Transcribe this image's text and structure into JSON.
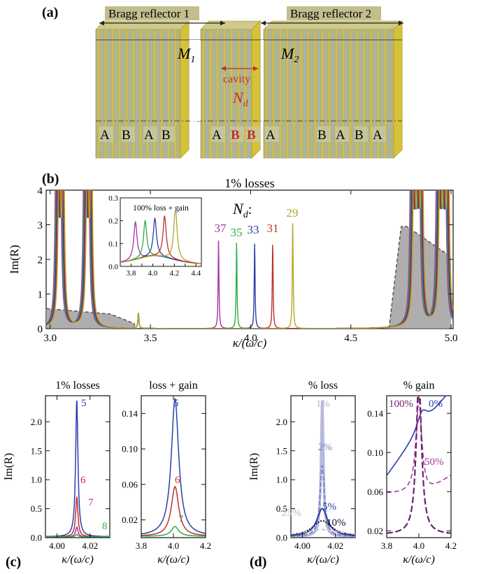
{
  "panel_labels": {
    "a": "(a)",
    "b": "(b)",
    "c": "(c)",
    "d": "(d)"
  },
  "schematic": {
    "bragg1": "Bragg reflector 1",
    "bragg2": "Bragg reflector 2",
    "m1": "M",
    "m1_sub": "1",
    "m2": "M",
    "m2_sub": "2",
    "cavity": "cavity",
    "nd": "N",
    "nd_sub": "d",
    "layer_a": "A",
    "layer_b": "B",
    "colors": {
      "gold": "#d6c23a",
      "stripe": "#9fb3c8",
      "cavity": "#c0302a"
    }
  },
  "chart_data": [
    {
      "id": "b",
      "type": "line",
      "title": "1% losses",
      "xlabel": "κ/(ω/c)",
      "ylabel": "Im(R)",
      "xlim": [
        2.98,
        5.01
      ],
      "ylim": [
        0,
        4
      ],
      "xticks": [
        "3.0",
        "3.5",
        "4.0",
        "4.5",
        "5.0"
      ],
      "yticks": [
        "0",
        "1",
        "2",
        "3",
        "4"
      ],
      "nd_label": "N",
      "nd_sub": "d",
      "nd_colon": ":",
      "series": [
        {
          "name": "37",
          "color": "#a634a6",
          "peak_x": 3.84,
          "peak_y": 2.55
        },
        {
          "name": "35",
          "color": "#2eab48",
          "peak_x": 3.93,
          "peak_y": 2.5
        },
        {
          "name": "33",
          "color": "#2c3ea8",
          "peak_x": 4.02,
          "peak_y": 2.5
        },
        {
          "name": "31",
          "color": "#c0302a",
          "peak_x": 4.11,
          "peak_y": 2.5
        },
        {
          "name": "29",
          "color": "#b3a72c",
          "peak_x": 4.21,
          "peak_y": 3.12
        }
      ],
      "band_shade": {
        "color": "#a0a0a0"
      },
      "inset": {
        "title": "100% loss + gain",
        "xlim": [
          3.7,
          4.45
        ],
        "ylim": [
          0,
          0.3
        ],
        "xticks": [
          "3.8",
          "3.9",
          "4.0",
          "4.1",
          "4.2",
          "4.3",
          "4.4"
        ],
        "yticks": [
          "0.0",
          "0.1",
          "0.2",
          "0.3"
        ],
        "peaks": [
          {
            "x": 3.84,
            "y": 0.165
          },
          {
            "x": 3.93,
            "y": 0.16
          },
          {
            "x": 4.02,
            "y": 0.165
          },
          {
            "x": 4.11,
            "y": 0.18
          },
          {
            "x": 4.21,
            "y": 0.23
          }
        ]
      }
    },
    {
      "id": "c1",
      "type": "line",
      "title": "1% losses",
      "xlabel": "κ/(ω/c)",
      "ylabel": "Im(R)",
      "xlim": [
        3.993,
        4.032
      ],
      "ylim": [
        0,
        2.45
      ],
      "xticks": [
        "4.00",
        "4.02"
      ],
      "yticks": [
        "0.0",
        "0.5",
        "1.0",
        "1.5",
        "2.0"
      ],
      "series": [
        {
          "name": "5",
          "color": "#2c3ea8",
          "peak": 2.35
        },
        {
          "name": "6",
          "color": "#c0302a",
          "peak": 0.68
        },
        {
          "name": "7",
          "color": "#a634a6",
          "peak": 0.17
        },
        {
          "name": "8",
          "color": "#2eab48",
          "peak": 0.04
        }
      ]
    },
    {
      "id": "c2",
      "type": "line",
      "title": "loss + gain",
      "xlabel": "κ/(ω/c)",
      "xlim": [
        3.8,
        4.2
      ],
      "ylim": [
        0,
        0.16
      ],
      "xticks": [
        "3.8",
        "4.0",
        "4.2"
      ],
      "yticks": [
        "0.02",
        "0.06",
        "0.10",
        "0.14"
      ],
      "series": [
        {
          "name": "5",
          "color": "#2c3ea8",
          "peak": 0.155
        },
        {
          "name": "6",
          "color": "#c0302a",
          "peak": 0.056
        },
        {
          "name": "7",
          "color": "#2eab48",
          "peak": 0.011
        }
      ]
    },
    {
      "id": "d1",
      "type": "line",
      "title": "% loss",
      "xlabel": "κ/(ω/c)",
      "ylabel": "Im(R)",
      "xlim": [
        3.993,
        4.032
      ],
      "ylim": [
        0,
        2.45
      ],
      "xticks": [
        "4.00",
        "4.02"
      ],
      "yticks": [
        "0.0",
        "0.5",
        "1.0",
        "1.5",
        "2.0"
      ],
      "series": [
        {
          "name": "1%",
          "color": "#b8b8dc",
          "peak": 2.35
        },
        {
          "name": "2%",
          "color": "#7a86c8",
          "peak": 1.22
        },
        {
          "name": "5%",
          "color": "#2c3ea8",
          "peak": 0.48
        },
        {
          "name": "10%",
          "color": "#111133",
          "peak": 0.27
        },
        {
          "name": "25%",
          "color": "#bdbdbd",
          "peak": 0.12
        }
      ]
    },
    {
      "id": "d2",
      "type": "line",
      "title": "% gain",
      "xlabel": "κ/(ω/c)",
      "xlim": [
        3.8,
        4.2
      ],
      "ylim": [
        0.013,
        0.158
      ],
      "xticks": [
        "3.8",
        "4.0",
        "4.2"
      ],
      "yticks": [
        "0.02",
        "0.06",
        "0.10",
        "0.14"
      ],
      "series": [
        {
          "name": "0%",
          "color": "#2c3ea8"
        },
        {
          "name": "50%",
          "color": "#a040a0"
        },
        {
          "name": "100%",
          "color": "#6e2070"
        }
      ]
    }
  ]
}
